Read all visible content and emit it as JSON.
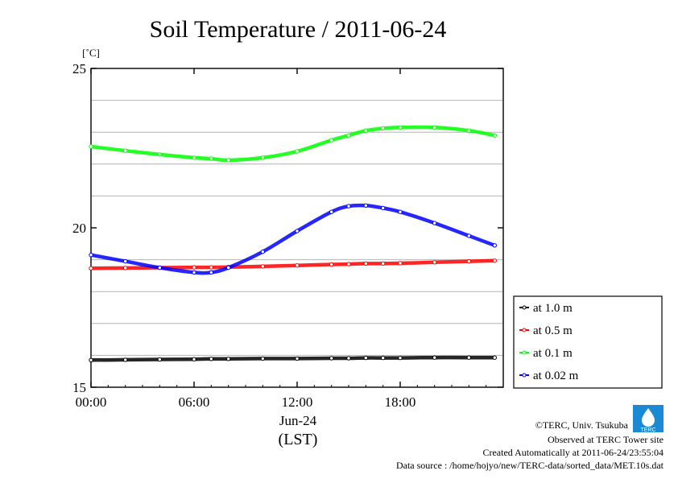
{
  "chart_data": {
    "type": "line",
    "title": "Soil Temperature / 2011-06-24",
    "ylabel": "[˚C]",
    "xlabel": "(LST)",
    "date_label": "Jun-24",
    "xlim": [
      0,
      24
    ],
    "ylim": [
      15,
      25
    ],
    "x_ticks": [
      {
        "value": 0,
        "label": "00:00"
      },
      {
        "value": 6,
        "label": "06:00"
      },
      {
        "value": 12,
        "label": "12:00"
      },
      {
        "value": 18,
        "label": "18:00"
      }
    ],
    "y_ticks": [
      {
        "value": 15,
        "label": "15"
      },
      {
        "value": 20,
        "label": "20"
      },
      {
        "value": 25,
        "label": "25"
      }
    ],
    "y_grid": [
      16,
      17,
      18,
      19,
      21,
      22,
      23,
      24
    ],
    "grid": true,
    "legend_position": "right",
    "x": [
      0,
      2,
      4,
      6,
      7,
      8,
      10,
      12,
      14,
      15,
      16,
      17,
      18,
      20,
      22,
      23.5
    ],
    "series": [
      {
        "name": "at 1.0 m",
        "color": "#000000",
        "values": [
          15.85,
          15.86,
          15.87,
          15.88,
          15.89,
          15.89,
          15.9,
          15.9,
          15.91,
          15.91,
          15.92,
          15.92,
          15.92,
          15.93,
          15.93,
          15.93
        ]
      },
      {
        "name": "at 0.5 m",
        "color": "#ff0000",
        "values": [
          18.73,
          18.74,
          18.75,
          18.76,
          18.76,
          18.77,
          18.79,
          18.82,
          18.85,
          18.86,
          18.88,
          18.88,
          18.89,
          18.92,
          18.95,
          18.97
        ]
      },
      {
        "name": "at 0.1 m",
        "color": "#00ff00",
        "values": [
          22.55,
          22.42,
          22.3,
          22.2,
          22.17,
          22.12,
          22.2,
          22.4,
          22.75,
          22.9,
          23.05,
          23.12,
          23.15,
          23.15,
          23.05,
          22.9
        ]
      },
      {
        "name": "at 0.02 m",
        "color": "#0000ff",
        "values": [
          19.15,
          18.95,
          18.75,
          18.6,
          18.6,
          18.75,
          19.25,
          19.9,
          20.5,
          20.68,
          20.7,
          20.62,
          20.5,
          20.15,
          19.75,
          19.45
        ]
      }
    ]
  },
  "footer": {
    "copyright": "©TERC, Univ. Tsukuba",
    "observed": "Observed at TERC Tower site",
    "created": "Created Automatically at 2011-06-24/23:55:04",
    "source": "Data source : /home/hojyo/new/TERC-data/sorted_data/MET.10s.dat"
  },
  "logo": {
    "text": "TERC",
    "color": "#1a8ad4"
  }
}
